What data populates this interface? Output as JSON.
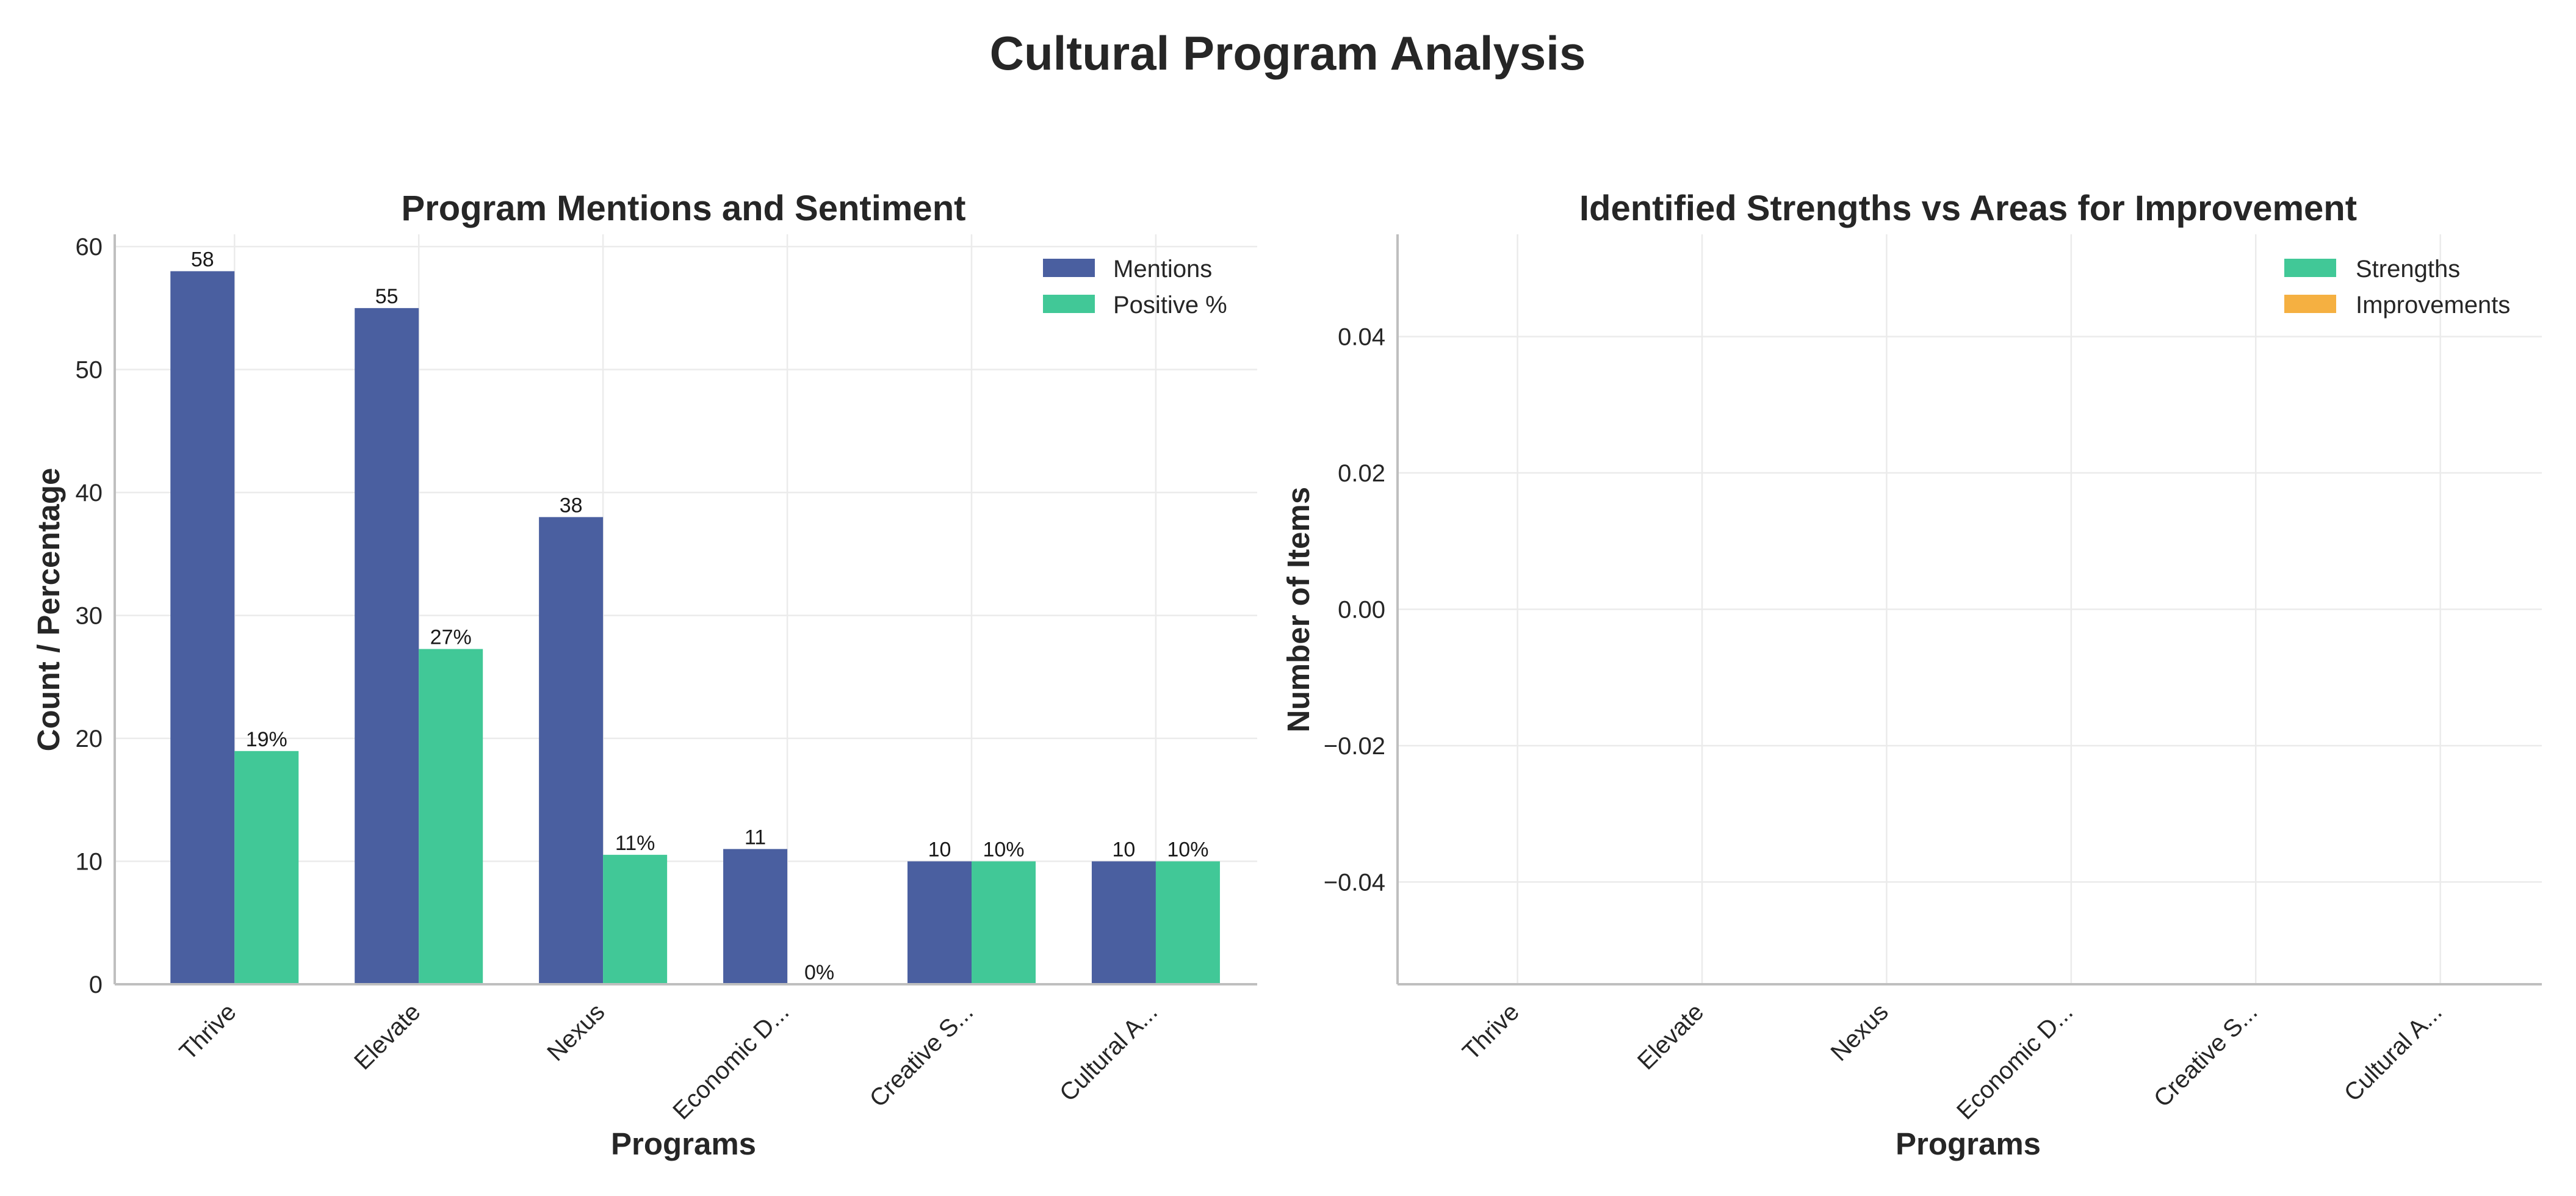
{
  "figure_title": "Cultural Program Analysis",
  "colors": {
    "mentions": "#4a5fa0",
    "positive": "#41c897",
    "strengths": "#41c897",
    "improvements": "#f5b041"
  },
  "chart_data": [
    {
      "type": "bar",
      "title": "Program Mentions and Sentiment",
      "xlabel": "Programs",
      "ylabel": "Count / Percentage",
      "categories": [
        "Thrive",
        "Elevate",
        "Nexus",
        "Economic D...",
        "Creative S...",
        "Cultural A..."
      ],
      "ylim": [
        0,
        61
      ],
      "yticks": [
        "0",
        "10",
        "20",
        "30",
        "40",
        "50",
        "60"
      ],
      "grid": true,
      "legend_position": "top-right",
      "series": [
        {
          "name": "Mentions",
          "values": [
            58,
            55,
            38,
            11,
            10,
            10
          ],
          "labels": [
            "58",
            "55",
            "38",
            "11",
            "10",
            "10"
          ]
        },
        {
          "name": "Positive %",
          "values": [
            18.97,
            27.27,
            10.53,
            0,
            10,
            10
          ],
          "labels": [
            "19%",
            "27%",
            "11%",
            "0%",
            "10%",
            "10%"
          ]
        }
      ]
    },
    {
      "type": "bar",
      "title": "Identified Strengths vs Areas for Improvement",
      "xlabel": "Programs",
      "ylabel": "Number of Items",
      "categories": [
        "Thrive",
        "Elevate",
        "Nexus",
        "Economic D...",
        "Creative S...",
        "Cultural A..."
      ],
      "ylim": [
        -0.055,
        0.055
      ],
      "yticks": [
        "0.04",
        "0.02",
        "0.00",
        "−0.02",
        "−0.04"
      ],
      "grid": true,
      "legend_position": "top-right",
      "series": [
        {
          "name": "Strengths",
          "values": [
            0,
            0,
            0,
            0,
            0,
            0
          ]
        },
        {
          "name": "Improvements",
          "values": [
            0,
            0,
            0,
            0,
            0,
            0
          ]
        }
      ]
    }
  ]
}
